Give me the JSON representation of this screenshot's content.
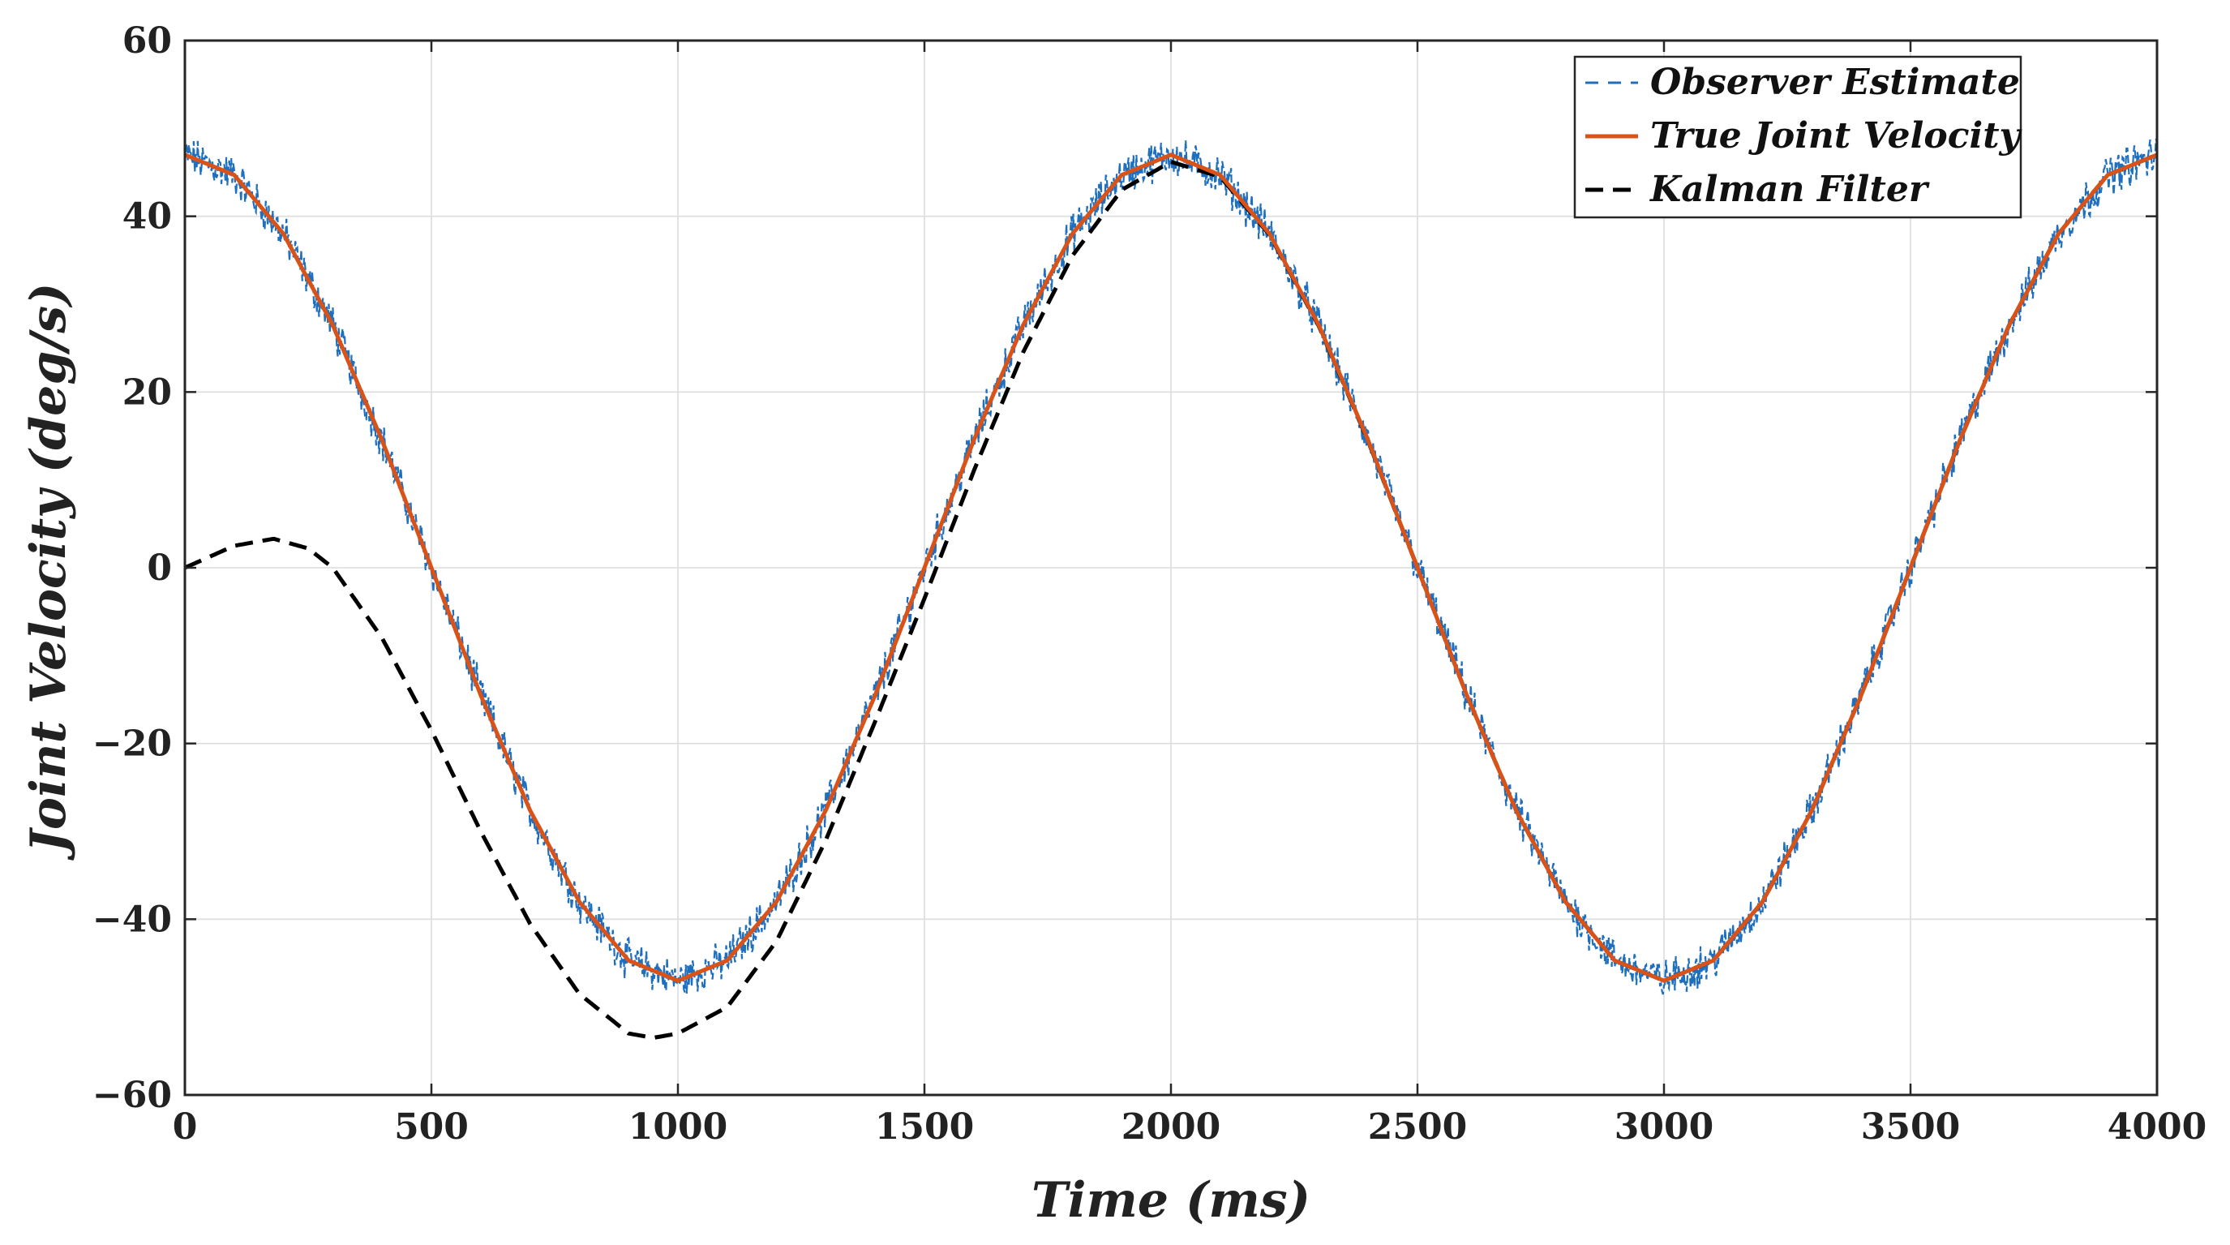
{
  "chart_data": {
    "type": "line",
    "title": "",
    "xlabel": "Time (ms)",
    "ylabel": "Joint Velocity (deg/s)",
    "xlim": [
      0,
      4000
    ],
    "ylim": [
      -60,
      60
    ],
    "xticks": [
      0,
      500,
      1000,
      1500,
      2000,
      2500,
      3000,
      3500,
      4000
    ],
    "yticks": [
      60,
      40,
      20,
      0,
      -20,
      -40,
      -60
    ],
    "xtick_labels": [
      "0",
      "500",
      "1000",
      "1500",
      "2000",
      "2500",
      "3000",
      "3500",
      "4000"
    ],
    "ytick_labels": [
      "60",
      "40",
      "20",
      "0",
      "−20",
      "−40",
      "−60"
    ],
    "grid": true,
    "legend_position": "top-right",
    "series": [
      {
        "name": "Observer Estimate",
        "style": "dashed",
        "color": "#1f6fbf",
        "noise_amplitude": 1.8,
        "x": [
          0,
          100,
          200,
          300,
          400,
          500,
          600,
          700,
          800,
          900,
          1000,
          1100,
          1200,
          1300,
          1400,
          1500,
          1600,
          1700,
          1800,
          1900,
          2000,
          2100,
          2200,
          2300,
          2400,
          2500,
          2600,
          2700,
          2800,
          2900,
          3000,
          3100,
          3200,
          3300,
          3400,
          3500,
          3600,
          3700,
          3800,
          3900,
          4000
        ],
        "values": [
          47,
          44.7,
          38,
          27.6,
          14.5,
          0,
          -14.5,
          -27.6,
          -38,
          -44.7,
          -47,
          -44.7,
          -38,
          -27.6,
          -14.5,
          0,
          14.5,
          27.6,
          38,
          44.7,
          47,
          44.7,
          38,
          27.6,
          14.5,
          0,
          -14.5,
          -27.6,
          -38,
          -44.7,
          -47,
          -44.7,
          -38,
          -27.6,
          -14.5,
          0,
          14.5,
          27.6,
          38,
          44.7,
          47
        ]
      },
      {
        "name": "True Joint Velocity",
        "style": "solid",
        "color": "#d95319",
        "x": [
          0,
          100,
          200,
          300,
          400,
          500,
          600,
          700,
          800,
          900,
          1000,
          1100,
          1200,
          1300,
          1400,
          1500,
          1600,
          1700,
          1800,
          1900,
          2000,
          2100,
          2200,
          2300,
          2400,
          2500,
          2600,
          2700,
          2800,
          2900,
          3000,
          3100,
          3200,
          3300,
          3400,
          3500,
          3600,
          3700,
          3800,
          3900,
          4000
        ],
        "values": [
          47,
          44.7,
          38,
          27.6,
          14.5,
          0,
          -14.5,
          -27.6,
          -38,
          -44.7,
          -47,
          -44.7,
          -38,
          -27.6,
          -14.5,
          0,
          14.5,
          27.6,
          38,
          44.7,
          47,
          44.7,
          38,
          27.6,
          14.5,
          0,
          -14.5,
          -27.6,
          -38,
          -44.7,
          -47,
          -44.7,
          -38,
          -27.6,
          -14.5,
          0,
          14.5,
          27.6,
          38,
          44.7,
          47
        ]
      },
      {
        "name": "Kalman Filter",
        "style": "dashed",
        "color": "#000000",
        "x": [
          0,
          100,
          180,
          250,
          300,
          400,
          500,
          600,
          700,
          800,
          900,
          950,
          1000,
          1100,
          1200,
          1300,
          1400,
          1500,
          1600,
          1700,
          1800,
          1900,
          2000,
          2100,
          2200,
          2300,
          2400,
          2500,
          2600,
          2700,
          2800,
          2900,
          3000,
          3100,
          3200,
          3300,
          3400,
          3500,
          3600,
          3700,
          3800,
          3900,
          4000
        ],
        "values": [
          0,
          2.5,
          3.3,
          2.2,
          0,
          -8,
          -18.5,
          -30,
          -40.5,
          -48.5,
          -53,
          -53.5,
          -53,
          -50,
          -42.5,
          -31,
          -17.5,
          -3.5,
          11,
          24.5,
          35.5,
          43,
          46.2,
          44.5,
          37.9,
          27.5,
          14.4,
          0,
          -14.5,
          -27.6,
          -38,
          -44.7,
          -47,
          -44.7,
          -38,
          -27.6,
          -14.5,
          0,
          14.5,
          27.6,
          38,
          44.7,
          47
        ]
      }
    ]
  }
}
